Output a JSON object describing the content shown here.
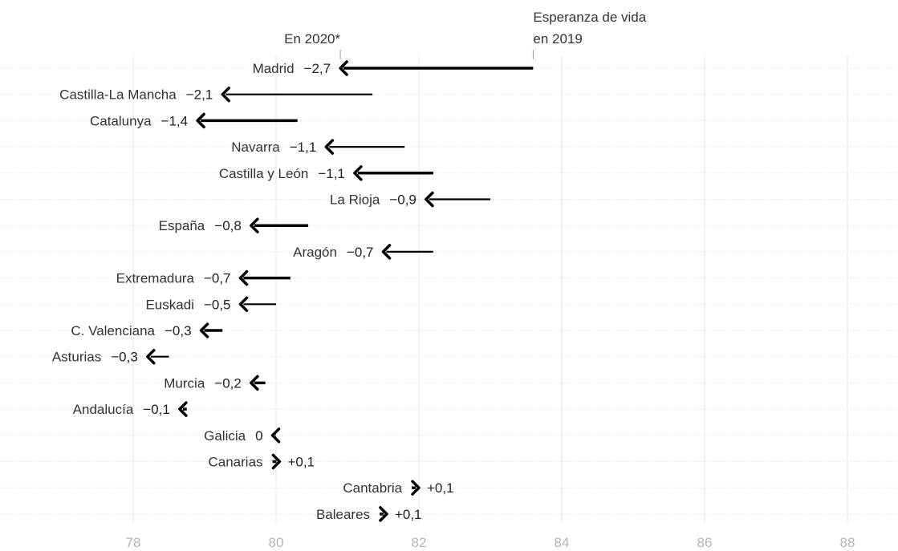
{
  "chart_data": {
    "type": "arrow",
    "annotations": {
      "start_label_line1": "Esperanza de vida",
      "start_label_line2": "en 2019",
      "end_label": "En 2020*"
    },
    "x_ticks": [
      "78",
      "80",
      "82",
      "84",
      "86",
      "88"
    ],
    "xlim": [
      76.2,
      89.0
    ],
    "grid": true,
    "colors": {
      "arrow": "#000000",
      "text": "#333333",
      "tick": "#b3b3b3"
    },
    "rows": [
      {
        "region": "Madrid",
        "change": "−2,7",
        "y2019": 83.6,
        "y2020": 80.9,
        "weight": "thick"
      },
      {
        "region": "Castilla-La Mancha",
        "change": "−2,1",
        "y2019": 81.35,
        "y2020": 79.25,
        "weight": "thin"
      },
      {
        "region": "Catalunya",
        "change": "−1,4",
        "y2019": 80.3,
        "y2020": 78.9,
        "weight": "thick"
      },
      {
        "region": "Navarra",
        "change": "−1,1",
        "y2019": 81.8,
        "y2020": 80.7,
        "weight": "thin"
      },
      {
        "region": "Castilla y León",
        "change": "−1,1",
        "y2019": 82.2,
        "y2020": 81.1,
        "weight": "thick"
      },
      {
        "region": "La Rioja",
        "change": "−0,9",
        "y2019": 83.0,
        "y2020": 82.1,
        "weight": "thin"
      },
      {
        "region": "España",
        "change": "−0,8",
        "y2019": 80.45,
        "y2020": 79.65,
        "weight": "thick"
      },
      {
        "region": "Aragón",
        "change": "−0,7",
        "y2019": 82.2,
        "y2020": 81.5,
        "weight": "thin"
      },
      {
        "region": "Extremadura",
        "change": "−0,7",
        "y2019": 80.2,
        "y2020": 79.5,
        "weight": "thick"
      },
      {
        "region": "Euskadi",
        "change": "−0,5",
        "y2019": 80.0,
        "y2020": 79.5,
        "weight": "thin"
      },
      {
        "region": "C. Valenciana",
        "change": "−0,3",
        "y2019": 79.25,
        "y2020": 78.95,
        "weight": "thick"
      },
      {
        "region": "Asturias",
        "change": "−0,3",
        "y2019": 78.5,
        "y2020": 78.2,
        "weight": "thin"
      },
      {
        "region": "Murcia",
        "change": "−0,2",
        "y2019": 79.85,
        "y2020": 79.65,
        "weight": "thick"
      },
      {
        "region": "Andalucía",
        "change": "−0,1",
        "y2019": 78.75,
        "y2020": 78.65,
        "weight": "thick"
      },
      {
        "region": "Galicia",
        "change": "0",
        "y2019": 80.0,
        "y2020": 79.95,
        "weight": "thick"
      },
      {
        "region": "Canarias",
        "change": "+0,1",
        "y2019": 79.95,
        "y2020": 80.05,
        "weight": "thick"
      },
      {
        "region": "Cantabria",
        "change": "+0,1",
        "y2019": 81.9,
        "y2020": 82.0,
        "weight": "thick"
      },
      {
        "region": "Baleares",
        "change": "+0,1",
        "y2019": 81.45,
        "y2020": 81.55,
        "weight": "thick"
      }
    ]
  }
}
